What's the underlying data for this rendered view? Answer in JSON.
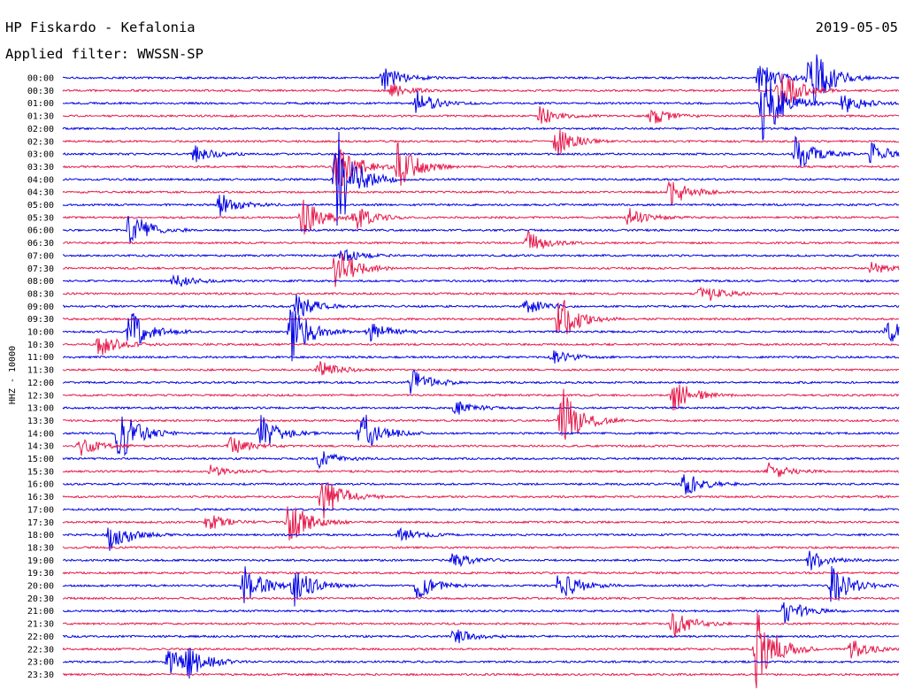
{
  "title": "HP Fiskardo - Kefalonia",
  "date": "2019-05-05",
  "filter_label": "Applied filter: WWSSN-SP",
  "channel_label": "HHZ - 10000",
  "colors": {
    "odd_rows": "#0000e6",
    "even_rows": "#e6194b",
    "background": "#ffffff",
    "text": "#000000"
  },
  "chart_data": {
    "type": "line",
    "rows": [
      "00:00",
      "00:30",
      "01:00",
      "01:30",
      "02:00",
      "02:30",
      "03:00",
      "03:30",
      "04:00",
      "04:30",
      "05:00",
      "05:30",
      "06:00",
      "06:30",
      "07:00",
      "07:30",
      "08:00",
      "08:30",
      "09:00",
      "09:30",
      "10:00",
      "10:30",
      "11:00",
      "11:30",
      "12:00",
      "12:30",
      "13:00",
      "13:30",
      "14:00",
      "14:30",
      "15:00",
      "15:30",
      "16:00",
      "16:30",
      "17:00",
      "17:30",
      "18:00",
      "18:30",
      "19:00",
      "19:30",
      "20:00",
      "20:30",
      "21:00",
      "21:30",
      "22:00",
      "22:30",
      "23:00",
      "23:30"
    ],
    "row_duration_min": 30,
    "ylabel": "HHZ - 10000",
    "events": [
      {
        "row": 0,
        "minute": 11.5,
        "amplitude": 1.0
      },
      {
        "row": 0,
        "minute": 25.0,
        "amplitude": 1.4
      },
      {
        "row": 0,
        "minute": 26.8,
        "amplitude": 3.0
      },
      {
        "row": 1,
        "minute": 11.8,
        "amplitude": 0.6
      },
      {
        "row": 1,
        "minute": 25.7,
        "amplitude": 2.0
      },
      {
        "row": 2,
        "minute": 12.7,
        "amplitude": 1.0
      },
      {
        "row": 2,
        "minute": 25.1,
        "amplitude": 3.5
      },
      {
        "row": 2,
        "minute": 28.0,
        "amplitude": 1.0
      },
      {
        "row": 3,
        "minute": 17.1,
        "amplitude": 0.8
      },
      {
        "row": 3,
        "minute": 21.1,
        "amplitude": 0.8
      },
      {
        "row": 5,
        "minute": 17.7,
        "amplitude": 1.2
      },
      {
        "row": 6,
        "minute": 4.7,
        "amplitude": 0.7
      },
      {
        "row": 6,
        "minute": 26.3,
        "amplitude": 1.5
      },
      {
        "row": 6,
        "minute": 29.0,
        "amplitude": 1.0
      },
      {
        "row": 7,
        "minute": 9.8,
        "amplitude": 2.5
      },
      {
        "row": 7,
        "minute": 12.0,
        "amplitude": 2.2
      },
      {
        "row": 8,
        "minute": 9.8,
        "amplitude": 5.0
      },
      {
        "row": 9,
        "minute": 21.8,
        "amplitude": 1.2
      },
      {
        "row": 10,
        "minute": 5.6,
        "amplitude": 1.0
      },
      {
        "row": 11,
        "minute": 8.6,
        "amplitude": 1.6
      },
      {
        "row": 11,
        "minute": 10.5,
        "amplitude": 1.0
      },
      {
        "row": 11,
        "minute": 20.3,
        "amplitude": 0.8
      },
      {
        "row": 12,
        "minute": 2.4,
        "amplitude": 1.7
      },
      {
        "row": 13,
        "minute": 16.7,
        "amplitude": 0.9
      },
      {
        "row": 14,
        "minute": 10.0,
        "amplitude": 0.6
      },
      {
        "row": 15,
        "minute": 9.8,
        "amplitude": 2.0
      },
      {
        "row": 15,
        "minute": 29.0,
        "amplitude": 0.5
      },
      {
        "row": 16,
        "minute": 4.0,
        "amplitude": 0.6
      },
      {
        "row": 17,
        "minute": 22.9,
        "amplitude": 0.9
      },
      {
        "row": 18,
        "minute": 8.4,
        "amplitude": 1.1
      },
      {
        "row": 18,
        "minute": 16.6,
        "amplitude": 0.7
      },
      {
        "row": 19,
        "minute": 17.8,
        "amplitude": 2.2
      },
      {
        "row": 20,
        "minute": 2.4,
        "amplitude": 1.8
      },
      {
        "row": 20,
        "minute": 8.2,
        "amplitude": 2.4
      },
      {
        "row": 20,
        "minute": 11.0,
        "amplitude": 0.9
      },
      {
        "row": 20,
        "minute": 29.6,
        "amplitude": 1.0
      },
      {
        "row": 21,
        "minute": 1.3,
        "amplitude": 1.0
      },
      {
        "row": 22,
        "minute": 17.6,
        "amplitude": 0.6
      },
      {
        "row": 23,
        "minute": 9.2,
        "amplitude": 0.8
      },
      {
        "row": 24,
        "minute": 12.5,
        "amplitude": 1.2
      },
      {
        "row": 25,
        "minute": 21.9,
        "amplitude": 1.5
      },
      {
        "row": 26,
        "minute": 14.1,
        "amplitude": 0.6
      },
      {
        "row": 27,
        "minute": 17.9,
        "amplitude": 2.8
      },
      {
        "row": 28,
        "minute": 2.0,
        "amplitude": 2.5
      },
      {
        "row": 28,
        "minute": 7.1,
        "amplitude": 1.5
      },
      {
        "row": 28,
        "minute": 10.7,
        "amplitude": 2.0
      },
      {
        "row": 29,
        "minute": 0.6,
        "amplitude": 0.8
      },
      {
        "row": 29,
        "minute": 6.0,
        "amplitude": 0.8
      },
      {
        "row": 30,
        "minute": 9.2,
        "amplitude": 0.7
      },
      {
        "row": 31,
        "minute": 5.3,
        "amplitude": 0.5
      },
      {
        "row": 31,
        "minute": 25.3,
        "amplitude": 0.8
      },
      {
        "row": 32,
        "minute": 22.3,
        "amplitude": 1.0
      },
      {
        "row": 33,
        "minute": 9.3,
        "amplitude": 2.0
      },
      {
        "row": 35,
        "minute": 8.1,
        "amplitude": 2.0
      },
      {
        "row": 35,
        "minute": 5.2,
        "amplitude": 0.7
      },
      {
        "row": 36,
        "minute": 1.7,
        "amplitude": 1.5
      },
      {
        "row": 36,
        "minute": 12.1,
        "amplitude": 0.6
      },
      {
        "row": 38,
        "minute": 14.0,
        "amplitude": 0.6
      },
      {
        "row": 38,
        "minute": 26.8,
        "amplitude": 0.8
      },
      {
        "row": 40,
        "minute": 6.5,
        "amplitude": 1.7
      },
      {
        "row": 40,
        "minute": 8.3,
        "amplitude": 1.6
      },
      {
        "row": 40,
        "minute": 12.7,
        "amplitude": 1.1
      },
      {
        "row": 40,
        "minute": 17.8,
        "amplitude": 1.5
      },
      {
        "row": 40,
        "minute": 27.6,
        "amplitude": 1.8
      },
      {
        "row": 42,
        "minute": 25.9,
        "amplitude": 1.1
      },
      {
        "row": 43,
        "minute": 21.9,
        "amplitude": 1.2
      },
      {
        "row": 44,
        "minute": 14.0,
        "amplitude": 0.7
      },
      {
        "row": 45,
        "minute": 24.9,
        "amplitude": 3.5
      },
      {
        "row": 45,
        "minute": 28.3,
        "amplitude": 0.9
      },
      {
        "row": 46,
        "minute": 3.8,
        "amplitude": 1.2
      },
      {
        "row": 46,
        "minute": 4.5,
        "amplitude": 1.2
      }
    ]
  }
}
